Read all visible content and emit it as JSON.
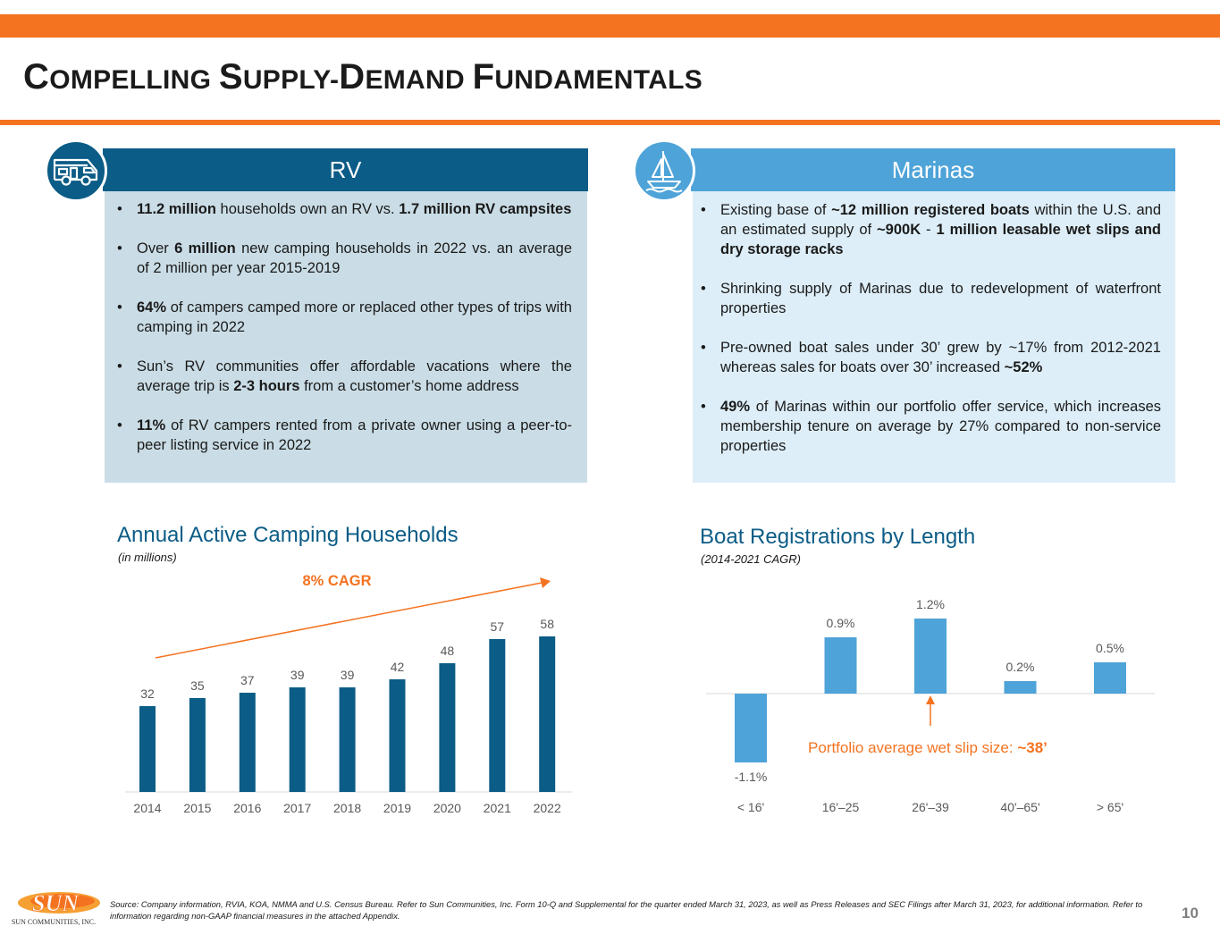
{
  "title": {
    "c1": "C",
    "w1": "OMPELLING ",
    "c2": "S",
    "w2": "UPPLY-",
    "c3": "D",
    "w3": "EMAND ",
    "c4": "F",
    "w4": "UNDAMENTALS"
  },
  "colors": {
    "orange": "#f47321",
    "navy": "#0b5c86",
    "sky": "#4ea3d8"
  },
  "rv": {
    "header": "RV",
    "icon": "rv-camper-icon",
    "bullets": [
      [
        {
          "b": "11.2 million"
        },
        {
          "t": " households own an RV vs. "
        },
        {
          "b": "1.7 million RV campsites"
        }
      ],
      [
        {
          "t": "Over "
        },
        {
          "b": "6 million"
        },
        {
          "t": " new camping households in 2022 vs. an average of 2 million per year 2015-2019"
        }
      ],
      [
        {
          "b": "64%"
        },
        {
          "t": " of campers camped more or replaced other types of trips with camping in 2022"
        }
      ],
      [
        {
          "t": "Sun’s RV communities offer affordable vacations where the average trip is "
        },
        {
          "b": "2-3 hours"
        },
        {
          "t": " from a customer’s home address"
        }
      ],
      [
        {
          "b": "11%"
        },
        {
          "t": " of RV campers rented from a private owner using a peer-to-peer listing service in 2022"
        }
      ]
    ]
  },
  "marinas": {
    "header": "Marinas",
    "icon": "sailboat-icon",
    "bullets": [
      [
        {
          "t": "Existing base of "
        },
        {
          "b": "~12 million registered boats"
        },
        {
          "t": " within the U.S. and an estimated supply of "
        },
        {
          "b": "~900K"
        },
        {
          "t": " - "
        },
        {
          "b": "1 million leasable wet slips and dry storage racks"
        }
      ],
      [
        {
          "t": "Shrinking supply of Marinas due to redevelopment of waterfront properties"
        }
      ],
      [
        {
          "t": "Pre-owned boat sales under 30’ grew by ~17% from 2012-2021 whereas sales for boats over 30’ increased "
        },
        {
          "b": "~52%"
        }
      ],
      [
        {
          "b": "49%"
        },
        {
          "t": " of Marinas within our portfolio offer service, which increases membership tenure on average by 27% compared to non-service properties"
        }
      ]
    ]
  },
  "chart_data": [
    {
      "type": "bar",
      "title": "Annual Active Camping Households",
      "subtitle": "(in millions)",
      "annotation": "8% CAGR",
      "categories": [
        "2014",
        "2015",
        "2016",
        "2017",
        "2018",
        "2019",
        "2020",
        "2021",
        "2022"
      ],
      "values": [
        32,
        35,
        37,
        39,
        39,
        42,
        48,
        57,
        58
      ],
      "ylim": [
        0,
        60
      ],
      "xlabel": "",
      "ylabel": ""
    },
    {
      "type": "bar",
      "title": "Boat Registrations by Length",
      "subtitle": "(2014-2021 CAGR)",
      "categories": [
        "< 16'",
        "16'–25",
        "26'–39",
        "40'–65'",
        "> 65'"
      ],
      "values": [
        -1.1,
        0.9,
        1.2,
        0.2,
        0.5
      ],
      "value_labels": [
        "-1.1%",
        "0.9%",
        "1.2%",
        "0.2%",
        "0.5%"
      ],
      "ylim": [
        -1.2,
        1.3
      ],
      "annotation": {
        "text": "Portfolio average wet slip size: ",
        "bold": "~38’",
        "category": "26'–39"
      },
      "xlabel": "",
      "ylabel": ""
    }
  ],
  "footer": {
    "logo_text": "SUN",
    "logo_caption": "SUN COMMUNITIES, INC.",
    "source": "Source: Company information, RVIA, KOA, NMMA and U.S. Census Bureau. Refer to Sun Communities, Inc. Form 10-Q and Supplemental for the quarter ended March 31, 2023, as well as Press Releases and SEC Filings after March 31, 2023, for additional information. Refer to information regarding non-GAAP financial measures in the attached Appendix.",
    "page": "10"
  }
}
